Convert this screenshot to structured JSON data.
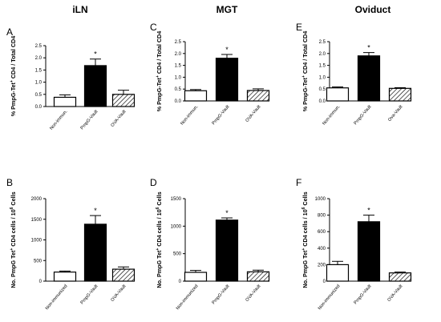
{
  "column_titles": [
    "iLN",
    "MGT",
    "Oviduct"
  ],
  "colors": {
    "bar_open": "#ffffff",
    "bar_solid": "#000000",
    "bar_hatch": "#000000"
  },
  "chart_data": [
    {
      "panel": "A",
      "type": "bar",
      "ylabel_html": "% PmpG-Tet⁺ CD4 / Total CD4",
      "ylabel": "% PmpG-Tet+ CD4 / Total CD4",
      "ylim": [
        0,
        2.5
      ],
      "yticks": [
        "0.0",
        "0.5",
        "1.0",
        "1.5",
        "2.0",
        "2.5"
      ],
      "ytick_values": [
        0,
        0.5,
        1.0,
        1.5,
        2.0,
        2.5
      ],
      "categories": [
        "Non-immun.",
        "PmpG-Vault",
        "OVA-Vault"
      ],
      "values": [
        0.38,
        1.68,
        0.5
      ],
      "errors": [
        0.1,
        0.27,
        0.17
      ],
      "fills": [
        "open",
        "solid",
        "hatch"
      ],
      "significance": [
        "",
        "*",
        ""
      ]
    },
    {
      "panel": "C",
      "type": "bar",
      "ylabel": "% PmpG-Tet+ CD4 / Total CD4",
      "ylim": [
        0,
        2.5
      ],
      "yticks": [
        "0.0",
        "0.5",
        "1.0",
        "1.5",
        "2.0",
        "2.5"
      ],
      "ytick_values": [
        0,
        0.5,
        1.0,
        1.5,
        2.0,
        2.5
      ],
      "categories": [
        "Non-immun.",
        "PmpG-Vault",
        "OVA-Vault"
      ],
      "values": [
        0.43,
        1.8,
        0.44
      ],
      "errors": [
        0.05,
        0.16,
        0.07
      ],
      "fills": [
        "open",
        "solid",
        "hatch"
      ],
      "significance": [
        "",
        "*",
        ""
      ]
    },
    {
      "panel": "E",
      "type": "bar",
      "ylabel": "% PmpG-Tet+ CD4 / Total CD4",
      "ylim": [
        0,
        2.5
      ],
      "yticks": [
        "0.0",
        "0.5",
        "1.0",
        "1.5",
        "2.0",
        "2.5"
      ],
      "ytick_values": [
        0,
        0.5,
        1.0,
        1.5,
        2.0,
        2.5
      ],
      "categories": [
        "Non-immun.",
        "PmpG-Vault",
        "Ova-Vault"
      ],
      "values": [
        0.55,
        1.9,
        0.53
      ],
      "errors": [
        0.04,
        0.14,
        0.03
      ],
      "fills": [
        "open",
        "solid",
        "hatch"
      ],
      "significance": [
        "",
        "*",
        ""
      ]
    },
    {
      "panel": "B",
      "type": "bar",
      "ylabel": "No. PmpG Tet+ CD4 cells / 10^6 Cells",
      "ylim": [
        0,
        2000
      ],
      "yticks": [
        "0",
        "500",
        "1000",
        "1500",
        "2000"
      ],
      "ytick_values": [
        0,
        500,
        1000,
        1500,
        2000
      ],
      "categories": [
        "Non-immunized",
        "PmpG-Vault",
        "OVA-Vault"
      ],
      "values": [
        220,
        1380,
        290
      ],
      "errors": [
        25,
        210,
        55
      ],
      "fills": [
        "open",
        "solid",
        "hatch"
      ],
      "significance": [
        "",
        "*",
        ""
      ]
    },
    {
      "panel": "D",
      "type": "bar",
      "ylabel": "No. PmpG Tet+ CD4 cells / 10^6 Cells",
      "ylim": [
        0,
        1500
      ],
      "yticks": [
        "0",
        "500",
        "1000",
        "1500"
      ],
      "ytick_values": [
        0,
        500,
        1000,
        1500
      ],
      "categories": [
        "Non-immunized",
        "PmpG-Vault",
        "OVA-Vault"
      ],
      "values": [
        160,
        1110,
        170
      ],
      "errors": [
        35,
        40,
        30
      ],
      "fills": [
        "open",
        "solid",
        "hatch"
      ],
      "significance": [
        "",
        "*",
        ""
      ]
    },
    {
      "panel": "F",
      "type": "bar",
      "ylabel": "No. PmpG Tet+ CD4 cells / 10^6 Cells",
      "ylim": [
        0,
        1000
      ],
      "yticks": [
        "0",
        "200",
        "400",
        "600",
        "800",
        "1000"
      ],
      "ytick_values": [
        0,
        200,
        400,
        600,
        800,
        1000
      ],
      "categories": [
        "Non-immunized",
        "PmpG-Vault",
        "OVA-Vault"
      ],
      "values": [
        200,
        720,
        100
      ],
      "errors": [
        40,
        80,
        10
      ],
      "fills": [
        "open",
        "solid",
        "hatch"
      ],
      "significance": [
        "",
        "*",
        ""
      ]
    }
  ]
}
